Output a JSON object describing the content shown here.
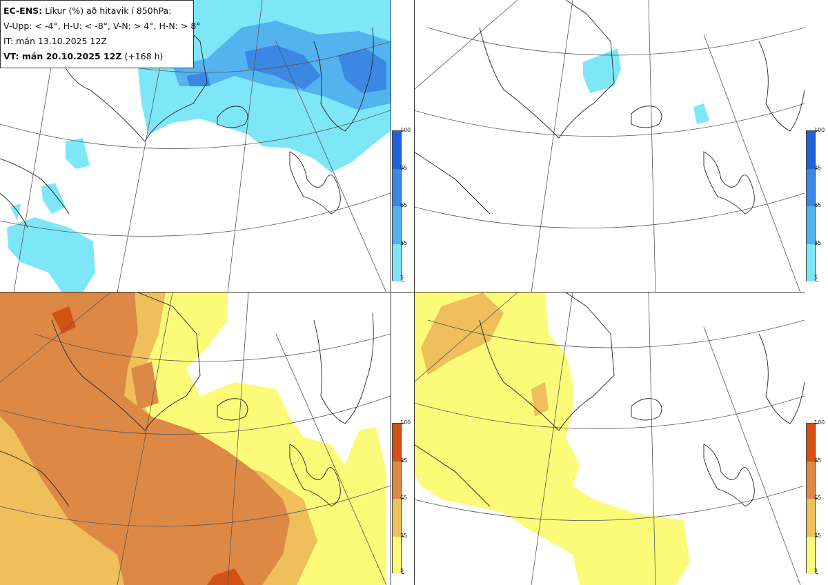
{
  "header": {
    "model": "EC-ENS:",
    "title": "Líkur (%) að hitavik í 850hPa:",
    "legend_line": "V-Upp: < -4°, H-U: < -8°, V-N: > 4°, H-N: > 8°",
    "initial_time": "IT: mán 13.10.2025 12Z",
    "valid_label": "VT: mán 20.10.2025 12Z",
    "lead_time": "(+168 h)"
  },
  "colorbars": {
    "cold": {
      "labels": [
        "100",
        "95",
        "65",
        "35",
        "5"
      ],
      "colors": [
        "#1f63d4",
        "#3b87e3",
        "#52b3ef",
        "#7de6f7"
      ]
    },
    "warm": {
      "labels": [
        "100",
        "95",
        "65",
        "35",
        "5"
      ],
      "colors": [
        "#d25216",
        "#de8845",
        "#eebf5a",
        "#fcfa79"
      ]
    }
  },
  "panels": [
    {
      "id": "V-Upp",
      "type": "cold"
    },
    {
      "id": "H-U",
      "type": "cold"
    },
    {
      "id": "V-N",
      "type": "warm"
    },
    {
      "id": "H-N",
      "type": "warm"
    }
  ]
}
